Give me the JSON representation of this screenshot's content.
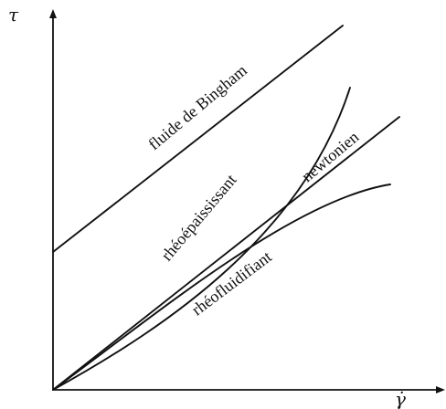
{
  "diagram": {
    "axes": {
      "y_label": "τ",
      "x_label": "γ̇"
    },
    "curves": [
      {
        "name": "bingham",
        "label": "fluide de Bingham"
      },
      {
        "name": "shear-thickening",
        "label": "rhéoépaississant"
      },
      {
        "name": "newtonian",
        "label": "newtonien"
      },
      {
        "name": "shear-thinning",
        "label": "rhéofluidifiant"
      }
    ]
  }
}
